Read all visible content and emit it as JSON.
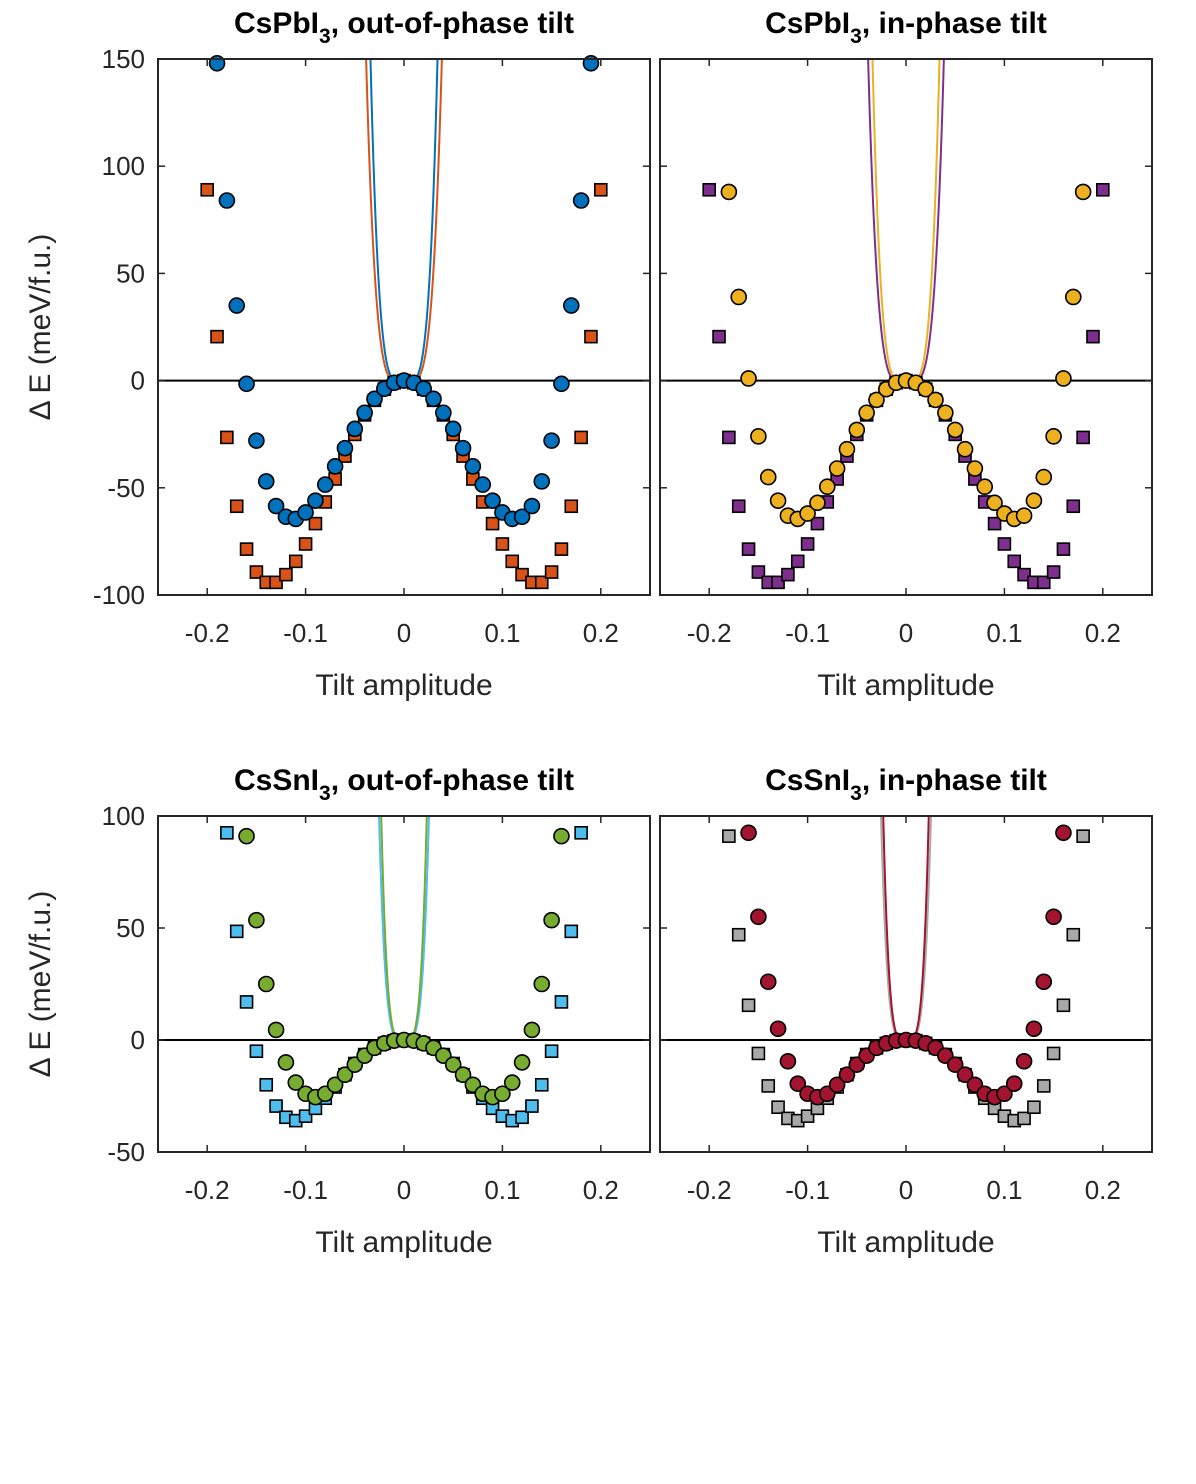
{
  "chart_data": [
    {
      "type": "line",
      "title": {
        "main": "CsPbI",
        "sub": "3",
        "rest": ", out-of-phase tilt"
      },
      "xlabel": "Tilt amplitude",
      "ylabel": "Δ E (meV/f.u.)",
      "xlim": [
        -0.25,
        0.25
      ],
      "ylim": [
        -100,
        150
      ],
      "xticks": [
        -0.2,
        -0.1,
        0,
        0.1,
        0.2
      ],
      "xtick_labels": [
        "-0.2",
        "-0.1",
        "0",
        "0.1",
        "0.2"
      ],
      "yticks": [
        -100,
        -50,
        0,
        50,
        100,
        150
      ],
      "ytick_labels": [
        "-100",
        "-50",
        "0",
        "50",
        "100",
        "150"
      ],
      "show_yaxis_labels": true,
      "zero_line": true,
      "series": [
        {
          "marker": "square",
          "color": "#D95319",
          "curve": {
            "a": 10000,
            "b": -75000000
          },
          "x": [
            -0.2,
            -0.19,
            -0.18,
            -0.17,
            -0.16,
            -0.15,
            -0.14,
            -0.13,
            -0.12,
            -0.11,
            -0.1,
            -0.09,
            -0.08,
            -0.07,
            -0.06,
            -0.05,
            -0.04,
            -0.03,
            -0.02,
            -0.01,
            0,
            0.01,
            0.02,
            0.03,
            0.04,
            0.05,
            0.06,
            0.07,
            0.08,
            0.09,
            0.1,
            0.11,
            0.12,
            0.13,
            0.14,
            0.15,
            0.16,
            0.17,
            0.18,
            0.19,
            0.2
          ],
          "y": [
            89,
            20.5,
            -26.5,
            -58.6,
            -78.6,
            -89.3,
            -94.1,
            -94.1,
            -90.5,
            -84.3,
            -76.2,
            -66.7,
            -56.6,
            -45.9,
            -35.2,
            -25.1,
            -16.0,
            -9.2,
            -4.0,
            -1.0,
            0,
            -1.0,
            -4.0,
            -9.2,
            -16.0,
            -25.1,
            -35.2,
            -45.9,
            -56.6,
            -66.7,
            -76.2,
            -84.3,
            -90.5,
            -94.1,
            -94.1,
            -89.3,
            -78.6,
            -58.6,
            -26.5,
            20.5,
            89
          ]
        },
        {
          "marker": "circle",
          "color": "#0072BD",
          "curve": {
            "a": 10000,
            "b": -120000000
          },
          "x": [
            -0.19,
            -0.18,
            -0.17,
            -0.16,
            -0.15,
            -0.14,
            -0.13,
            -0.12,
            -0.11,
            -0.1,
            -0.09,
            -0.08,
            -0.07,
            -0.06,
            -0.05,
            -0.04,
            -0.03,
            -0.02,
            -0.01,
            0,
            0.01,
            0.02,
            0.03,
            0.04,
            0.05,
            0.06,
            0.07,
            0.08,
            0.09,
            0.1,
            0.11,
            0.12,
            0.13,
            0.14,
            0.15,
            0.16,
            0.17,
            0.18,
            0.19
          ],
          "y": [
            148,
            84,
            35,
            -1.5,
            -28,
            -47,
            -58.5,
            -63.5,
            -64.5,
            -61.5,
            -56,
            -48.5,
            -40,
            -31.5,
            -22.5,
            -15,
            -8.5,
            -3.8,
            -1,
            0,
            -1,
            -3.8,
            -8.5,
            -15,
            -22.5,
            -31.5,
            -40,
            -48.5,
            -56,
            -61.5,
            -64.5,
            -63.5,
            -58.5,
            -47,
            -28,
            -1.5,
            35,
            84,
            148
          ]
        }
      ]
    },
    {
      "type": "line",
      "title": {
        "main": "CsPbI",
        "sub": "3",
        "rest": ", in-phase tilt"
      },
      "xlabel": "Tilt amplitude",
      "ylabel": "",
      "xlim": [
        -0.25,
        0.25
      ],
      "ylim": [
        -100,
        150
      ],
      "xticks": [
        -0.2,
        -0.1,
        0,
        0.1,
        0.2
      ],
      "xtick_labels": [
        "-0.2",
        "-0.1",
        "0",
        "0.1",
        "0.2"
      ],
      "yticks": [
        -100,
        -50,
        0,
        50,
        100,
        150
      ],
      "ytick_labels": [],
      "show_yaxis_labels": false,
      "zero_line": true,
      "series": [
        {
          "marker": "square",
          "color": "#7E2F8E",
          "curve": {
            "a": 10000,
            "b": -75000000
          },
          "x": [
            -0.2,
            -0.19,
            -0.18,
            -0.17,
            -0.16,
            -0.15,
            -0.14,
            -0.13,
            -0.12,
            -0.11,
            -0.1,
            -0.09,
            -0.08,
            -0.07,
            -0.06,
            -0.05,
            -0.04,
            -0.03,
            -0.02,
            -0.01,
            0,
            0.01,
            0.02,
            0.03,
            0.04,
            0.05,
            0.06,
            0.07,
            0.08,
            0.09,
            0.1,
            0.11,
            0.12,
            0.13,
            0.14,
            0.15,
            0.16,
            0.17,
            0.18,
            0.19,
            0.2
          ],
          "y": [
            89,
            20.5,
            -26.5,
            -58.6,
            -78.6,
            -89.3,
            -94.1,
            -94.1,
            -90.5,
            -84.3,
            -76.2,
            -66.7,
            -56.6,
            -45.9,
            -35.2,
            -25.1,
            -16.0,
            -9.2,
            -4.0,
            -1.0,
            0,
            -1.0,
            -4.0,
            -9.2,
            -16.0,
            -25.1,
            -35.2,
            -45.9,
            -56.6,
            -66.7,
            -76.2,
            -84.3,
            -90.5,
            -94.1,
            -94.1,
            -89.3,
            -78.6,
            -58.6,
            -26.5,
            20.5,
            89
          ]
        },
        {
          "marker": "circle",
          "color": "#EDB120",
          "curve": {
            "a": 10000,
            "b": -120000000
          },
          "x": [
            -0.18,
            -0.17,
            -0.16,
            -0.15,
            -0.14,
            -0.13,
            -0.12,
            -0.11,
            -0.1,
            -0.09,
            -0.08,
            -0.07,
            -0.06,
            -0.05,
            -0.04,
            -0.03,
            -0.02,
            -0.01,
            0,
            0.01,
            0.02,
            0.03,
            0.04,
            0.05,
            0.06,
            0.07,
            0.08,
            0.09,
            0.1,
            0.11,
            0.12,
            0.13,
            0.14,
            0.15,
            0.16,
            0.17,
            0.18
          ],
          "y": [
            88,
            39,
            1,
            -26,
            -45,
            -56,
            -63,
            -64.5,
            -62,
            -57,
            -49.5,
            -41,
            -32,
            -23,
            -15,
            -9,
            -4,
            -1,
            0,
            -1,
            -4,
            -9,
            -15,
            -23,
            -32,
            -41,
            -49.5,
            -57,
            -62,
            -64.5,
            -63,
            -56,
            -45,
            -26,
            1,
            39,
            88
          ]
        }
      ]
    },
    {
      "type": "line",
      "title": {
        "main": "CsSnI",
        "sub": "3",
        "rest": ", out-of-phase tilt"
      },
      "xlabel": "Tilt amplitude",
      "ylabel": "Δ E (meV/f.u.)",
      "xlim": [
        -0.25,
        0.25
      ],
      "ylim": [
        -50,
        100
      ],
      "xticks": [
        -0.2,
        -0.1,
        0,
        0.1,
        0.2
      ],
      "xtick_labels": [
        "-0.2",
        "-0.1",
        "0",
        "0.1",
        "0.2"
      ],
      "yticks": [
        -50,
        0,
        50,
        100
      ],
      "ytick_labels": [
        "-50",
        "0",
        "50",
        "100"
      ],
      "show_yaxis_labels": true,
      "zero_line": true,
      "series": [
        {
          "marker": "square",
          "color": "#4DBEEE",
          "curve": {
            "a": 6000,
            "b": -250000000
          },
          "x": [
            -0.18,
            -0.17,
            -0.16,
            -0.15,
            -0.14,
            -0.13,
            -0.12,
            -0.11,
            -0.1,
            -0.09,
            -0.08,
            -0.07,
            -0.06,
            -0.05,
            -0.04,
            -0.03,
            -0.02,
            -0.01,
            0,
            0.01,
            0.02,
            0.03,
            0.04,
            0.05,
            0.06,
            0.07,
            0.08,
            0.09,
            0.1,
            0.11,
            0.12,
            0.13,
            0.14,
            0.15,
            0.16,
            0.17,
            0.18
          ],
          "y": [
            92.5,
            48.5,
            17,
            -5,
            -20,
            -29.5,
            -34.5,
            -36,
            -34,
            -30.5,
            -26,
            -21,
            -15.5,
            -10.5,
            -6.5,
            -3.5,
            -1.5,
            -0.3,
            0,
            -0.3,
            -1.5,
            -3.5,
            -6.5,
            -10.5,
            -15.5,
            -21,
            -26,
            -30.5,
            -34,
            -36,
            -34.5,
            -29.5,
            -20,
            -5,
            17,
            48.5,
            92.5
          ]
        },
        {
          "marker": "circle",
          "color": "#77AC30",
          "curve": {
            "a": 6000,
            "b": -360000000
          },
          "x": [
            -0.16,
            -0.15,
            -0.14,
            -0.13,
            -0.12,
            -0.11,
            -0.1,
            -0.09,
            -0.08,
            -0.07,
            -0.06,
            -0.05,
            -0.04,
            -0.03,
            -0.02,
            -0.01,
            0,
            0.01,
            0.02,
            0.03,
            0.04,
            0.05,
            0.06,
            0.07,
            0.08,
            0.09,
            0.1,
            0.11,
            0.12,
            0.13,
            0.14,
            0.15,
            0.16
          ],
          "y": [
            91,
            53.5,
            25,
            4.5,
            -10,
            -19,
            -24,
            -25.5,
            -24,
            -20,
            -15.5,
            -11,
            -7,
            -3.5,
            -1.5,
            -0.3,
            0,
            -0.3,
            -1.5,
            -3.5,
            -7,
            -11,
            -15.5,
            -20,
            -24,
            -25.5,
            -24,
            -19,
            -10,
            4.5,
            25,
            53.5,
            91
          ]
        }
      ]
    },
    {
      "type": "line",
      "title": {
        "main": "CsSnI",
        "sub": "3",
        "rest": ", in-phase tilt"
      },
      "xlabel": "Tilt amplitude",
      "ylabel": "",
      "xlim": [
        -0.25,
        0.25
      ],
      "ylim": [
        -50,
        100
      ],
      "xticks": [
        -0.2,
        -0.1,
        0,
        0.1,
        0.2
      ],
      "xtick_labels": [
        "-0.2",
        "-0.1",
        "0",
        "0.1",
        "0.2"
      ],
      "yticks": [
        -50,
        0,
        50,
        100
      ],
      "ytick_labels": [],
      "show_yaxis_labels": false,
      "zero_line": true,
      "series": [
        {
          "marker": "square",
          "color": "#A9A9A9",
          "curve": {
            "a": 6000,
            "b": -250000000
          },
          "x": [
            -0.18,
            -0.17,
            -0.16,
            -0.15,
            -0.14,
            -0.13,
            -0.12,
            -0.11,
            -0.1,
            -0.09,
            -0.08,
            -0.07,
            -0.06,
            -0.05,
            -0.04,
            -0.03,
            -0.02,
            -0.01,
            0,
            0.01,
            0.02,
            0.03,
            0.04,
            0.05,
            0.06,
            0.07,
            0.08,
            0.09,
            0.1,
            0.11,
            0.12,
            0.13,
            0.14,
            0.15,
            0.16,
            0.17,
            0.18
          ],
          "y": [
            91,
            47,
            15.5,
            -6,
            -20.5,
            -30,
            -35,
            -36,
            -34,
            -30.5,
            -26,
            -21,
            -15.5,
            -10.5,
            -6.5,
            -3.5,
            -1.5,
            -0.3,
            0,
            -0.3,
            -1.5,
            -3.5,
            -6.5,
            -10.5,
            -15.5,
            -21,
            -26,
            -30.5,
            -34,
            -36,
            -35,
            -30,
            -20.5,
            -6,
            15.5,
            47,
            91
          ]
        },
        {
          "marker": "circle",
          "color": "#A2142F",
          "curve": {
            "a": 6000,
            "b": -360000000
          },
          "x": [
            -0.16,
            -0.15,
            -0.14,
            -0.13,
            -0.12,
            -0.11,
            -0.1,
            -0.09,
            -0.08,
            -0.07,
            -0.06,
            -0.05,
            -0.04,
            -0.03,
            -0.02,
            -0.01,
            0,
            0.01,
            0.02,
            0.03,
            0.04,
            0.05,
            0.06,
            0.07,
            0.08,
            0.09,
            0.1,
            0.11,
            0.12,
            0.13,
            0.14,
            0.15,
            0.16
          ],
          "y": [
            92.5,
            55,
            26,
            5,
            -9.5,
            -19.5,
            -24,
            -25.5,
            -24,
            -20,
            -15.5,
            -11,
            -7,
            -3.5,
            -1.5,
            -0.3,
            0,
            -0.3,
            -1.5,
            -3.5,
            -7,
            -11,
            -15.5,
            -20,
            -24,
            -25.5,
            -24,
            -19.5,
            -9.5,
            5,
            26,
            55,
            92.5
          ]
        }
      ]
    }
  ]
}
